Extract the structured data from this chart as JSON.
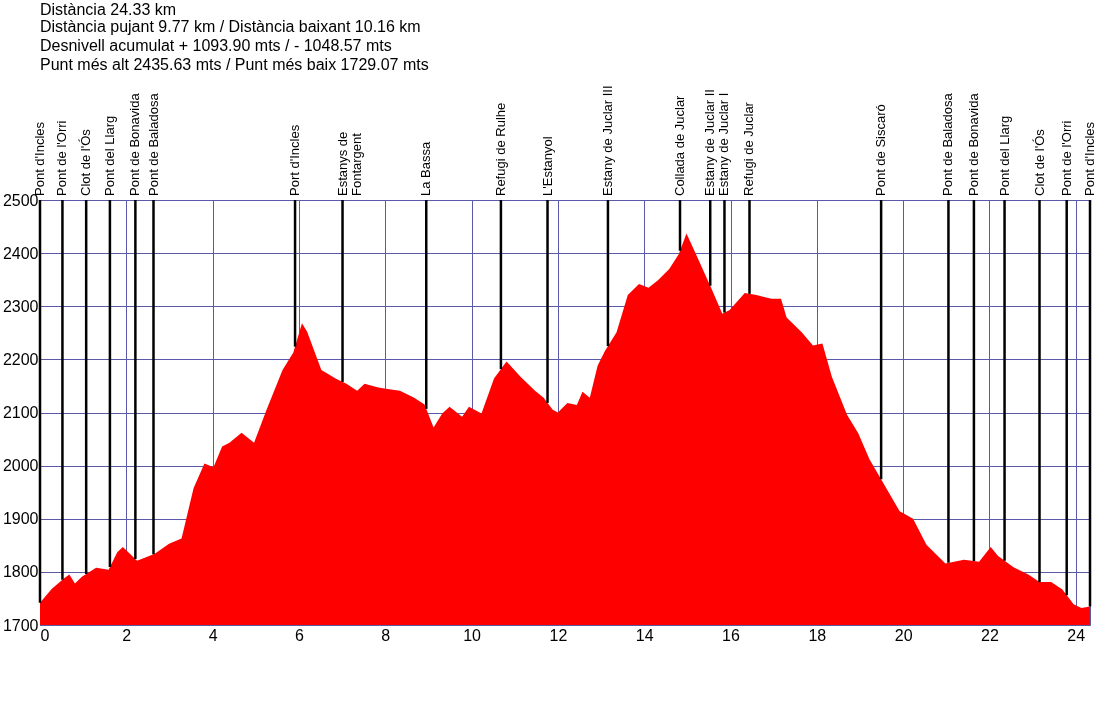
{
  "chart_data": {
    "type": "area",
    "title": "Distància 24.33 km",
    "subtitle": "Distància pujant 9.77 km / Distància baixant 10.16 km\nDesnivell acumulat + 1093.90 mts / - 1048.57 mts\nPunt més alt 2435.63 mts / Punt més baix 1729.07 mts",
    "x": [
      0,
      0.27,
      0.56,
      0.68,
      0.81,
      0.97,
      1.3,
      1.59,
      1.79,
      1.92,
      2.25,
      2.66,
      2.99,
      3.28,
      3.56,
      3.81,
      4.02,
      4.22,
      4.39,
      4.67,
      4.96,
      5.25,
      5.62,
      5.87,
      6.07,
      6.19,
      6.52,
      6.85,
      7.1,
      7.35,
      7.52,
      7.84,
      8.09,
      8.34,
      8.67,
      8.91,
      9.12,
      9.32,
      9.49,
      9.78,
      9.94,
      10.23,
      10.52,
      10.81,
      11.14,
      11.47,
      11.67,
      11.88,
      12,
      12.22,
      12.44,
      12.57,
      12.74,
      12.92,
      13.09,
      13.36,
      13.62,
      13.88,
      14.1,
      14.32,
      14.58,
      14.8,
      14.98,
      15.2,
      15.55,
      15.81,
      15.98,
      16.33,
      16.6,
      16.95,
      17.17,
      17.3,
      17.65,
      17.91,
      18.13,
      18.35,
      18.7,
      18.96,
      19.22,
      19.57,
      19.92,
      20.23,
      20.54,
      20.98,
      21.41,
      21.76,
      22.03,
      22.2,
      22.55,
      22.9,
      23.16,
      23.43,
      23.69,
      23.95,
      24.13,
      24.33
    ],
    "series": [
      {
        "color": "#ff0000",
        "values": [
          1742,
          1768,
          1788,
          1795,
          1778,
          1791,
          1808,
          1804,
          1837,
          1847,
          1821,
          1834,
          1853,
          1863,
          1958,
          2004,
          1997,
          2036,
          2043,
          2062,
          2043,
          2105,
          2180,
          2213,
          2268,
          2252,
          2180,
          2164,
          2154,
          2141,
          2154,
          2147,
          2144,
          2141,
          2128,
          2115,
          2072,
          2098,
          2111,
          2092,
          2111,
          2098,
          2164,
          2196,
          2167,
          2141,
          2128,
          2105,
          2100,
          2118,
          2114,
          2139,
          2128,
          2188,
          2216,
          2251,
          2321,
          2342,
          2335,
          2349,
          2370,
          2398,
          2437,
          2398,
          2335,
          2286,
          2293,
          2325,
          2321,
          2314,
          2314,
          2279,
          2251,
          2226,
          2230,
          2167,
          2096,
          2061,
          2012,
          1963,
          1914,
          1900,
          1851,
          1816,
          1823,
          1819,
          1847,
          1830,
          1809,
          1795,
          1781,
          1781,
          1767,
          1739,
          1732,
          1735
        ]
      }
    ],
    "xlim": [
      0,
      24.33
    ],
    "xticks": [
      0,
      2,
      4,
      6,
      8,
      10,
      12,
      14,
      16,
      18,
      20,
      22,
      24
    ],
    "ylim": [
      1700,
      2500
    ],
    "yticks": [
      1700,
      1800,
      1900,
      2000,
      2100,
      2200,
      2300,
      2400,
      2500
    ],
    "grid": true,
    "ref_lines": [
      {
        "axis": "x",
        "value": 0,
        "label": "Pont d'Incles"
      },
      {
        "axis": "x",
        "value": 0.52,
        "label": "Pont de l'Orri"
      },
      {
        "axis": "x",
        "value": 1.07,
        "label": "Clot de l'Ós"
      },
      {
        "axis": "x",
        "value": 1.62,
        "label": "Pont del Llarg"
      },
      {
        "axis": "x",
        "value": 2.21,
        "label": "Pont de Bonavida"
      },
      {
        "axis": "x",
        "value": 2.63,
        "label": "Pont de Baladosa"
      },
      {
        "axis": "x",
        "value": 5.91,
        "label": "Port d'Incles"
      },
      {
        "axis": "x",
        "value": 7.01,
        "label": "Estanys de\nFontargent"
      },
      {
        "axis": "x",
        "value": 8.95,
        "label": "La Bassa"
      },
      {
        "axis": "x",
        "value": 10.68,
        "label": "Refugi de Rulhe"
      },
      {
        "axis": "x",
        "value": 11.76,
        "label": "L'Estanyol"
      },
      {
        "axis": "x",
        "value": 13.16,
        "label": "Estany de Juclar III"
      },
      {
        "axis": "x",
        "value": 14.83,
        "label": "Collada de Juclar"
      },
      {
        "axis": "x",
        "value": 15.53,
        "label": "Estany de Juclar II"
      },
      {
        "axis": "x",
        "value": 15.86,
        "label": "Estany de Juclar I"
      },
      {
        "axis": "x",
        "value": 16.44,
        "label": "Refugi de Juclar"
      },
      {
        "axis": "x",
        "value": 19.49,
        "label": "Pont de Siscaró"
      },
      {
        "axis": "x",
        "value": 21.05,
        "label": "Pont de Baladosa"
      },
      {
        "axis": "x",
        "value": 21.64,
        "label": "Pont de Bonavida"
      },
      {
        "axis": "x",
        "value": 22.35,
        "label": "Pont del Llarg"
      },
      {
        "axis": "x",
        "value": 23.16,
        "label": "Clot de l'Ós"
      },
      {
        "axis": "x",
        "value": 23.79,
        "label": "Pont de l'Orri"
      },
      {
        "axis": "x",
        "value": 24.33,
        "label": "Pont d'Incles"
      }
    ]
  }
}
